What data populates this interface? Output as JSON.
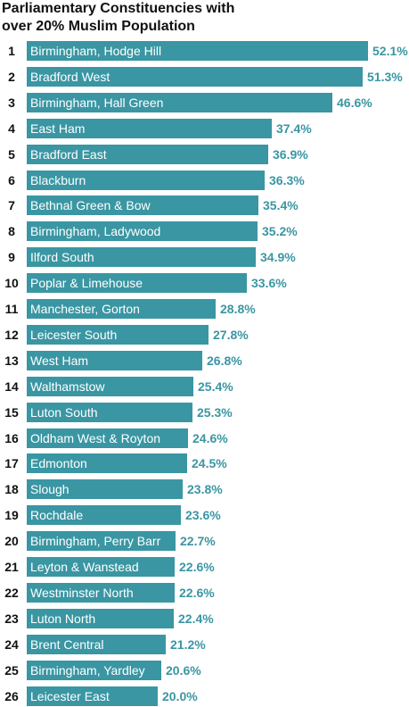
{
  "chart_data": {
    "type": "bar",
    "orientation": "horizontal",
    "title": "Parliamentary Constituencies with over 20% Muslim Population",
    "title_lines": [
      "Parliamentary Constituencies with",
      "over 20% Muslim Population"
    ],
    "bar_color": "#3a96a3",
    "value_color": "#3a96a3",
    "unit": "%",
    "xlim": [
      0,
      52.1
    ],
    "ranks": [
      "1",
      "2",
      "3",
      "4",
      "5",
      "6",
      "7",
      "8",
      "9",
      "10",
      "11",
      "12",
      "13",
      "14",
      "15",
      "16",
      "17",
      "18",
      "19",
      "20",
      "21",
      "22",
      "23",
      "24",
      "25",
      "26"
    ],
    "categories": [
      "Birmingham, Hodge Hill",
      "Bradford West",
      "Birmingham, Hall Green",
      "East Ham",
      "Bradford East",
      "Blackburn",
      "Bethnal Green & Bow",
      "Birmingham, Ladywood",
      "Ilford South",
      "Poplar & Limehouse",
      "Manchester, Gorton",
      "Leicester South",
      "West Ham",
      "Walthamstow",
      "Luton South",
      "Oldham West & Royton",
      "Edmonton",
      "Slough",
      "Rochdale",
      "Birmingham, Perry Barr",
      "Leyton & Wanstead",
      "Westminster North",
      "Luton North",
      "Brent Central",
      "Birmingham, Yardley",
      "Leicester East"
    ],
    "values": [
      52.1,
      51.3,
      46.6,
      37.4,
      36.9,
      36.3,
      35.4,
      35.2,
      34.9,
      33.6,
      28.8,
      27.8,
      26.8,
      25.4,
      25.3,
      24.6,
      24.5,
      23.8,
      23.6,
      22.7,
      22.6,
      22.6,
      22.4,
      21.2,
      20.6,
      20.0
    ],
    "value_labels": [
      "52.1%",
      "51.3%",
      "46.6%",
      "37.4%",
      "36.9%",
      "36.3%",
      "35.4%",
      "35.2%",
      "34.9%",
      "33.6%",
      "28.8%",
      "27.8%",
      "26.8%",
      "25.4%",
      "25.3%",
      "24.6%",
      "24.5%",
      "23.8%",
      "23.6%",
      "22.7%",
      "22.6%",
      "22.6%",
      "22.4%",
      "21.2%",
      "20.6%",
      "20.0%"
    ]
  }
}
